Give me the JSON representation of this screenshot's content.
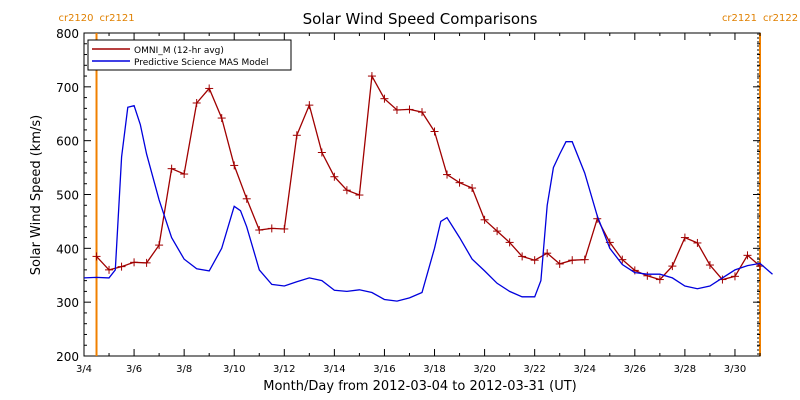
{
  "chart_data": {
    "type": "line",
    "title": "Solar Wind Speed Comparisons",
    "xlabel": "Month/Day from 2012-03-04 to 2012-03-31 (UT)",
    "ylabel": "Solar Wind Speed (km/s)",
    "xlim": [
      "2012-03-04",
      "2012-03-31"
    ],
    "ylim": [
      200,
      800
    ],
    "x_ticks": [
      "3/4",
      "3/6",
      "3/8",
      "3/10",
      "3/12",
      "3/14",
      "3/16",
      "3/18",
      "3/20",
      "3/22",
      "3/24",
      "3/26",
      "3/28",
      "3/30"
    ],
    "y_ticks": [
      200,
      300,
      400,
      500,
      600,
      700,
      800
    ],
    "legend_position": "top-left",
    "carrington_markers": [
      {
        "label_left": "cr2120",
        "label_right": "cr2121",
        "date": "2012-03-04 12:00"
      },
      {
        "label_left": "cr2121",
        "label_right": "cr2122",
        "date": "2012-03-31 00:00"
      }
    ],
    "series": [
      {
        "name": "OMNI_M (12-hr avg)",
        "color": "#a00000",
        "marker": "plus",
        "x": [
          "2012-03-04 12:00",
          "2012-03-05 00:00",
          "2012-03-05 12:00",
          "2012-03-06 00:00",
          "2012-03-06 12:00",
          "2012-03-07 00:00",
          "2012-03-07 12:00",
          "2012-03-08 00:00",
          "2012-03-08 12:00",
          "2012-03-09 00:00",
          "2012-03-09 12:00",
          "2012-03-10 00:00",
          "2012-03-10 12:00",
          "2012-03-11 00:00",
          "2012-03-11 12:00",
          "2012-03-12 00:00",
          "2012-03-12 12:00",
          "2012-03-13 00:00",
          "2012-03-13 12:00",
          "2012-03-14 00:00",
          "2012-03-14 12:00",
          "2012-03-15 00:00",
          "2012-03-15 12:00",
          "2012-03-16 00:00",
          "2012-03-16 12:00",
          "2012-03-17 00:00",
          "2012-03-17 12:00",
          "2012-03-18 00:00",
          "2012-03-18 12:00",
          "2012-03-19 00:00",
          "2012-03-19 12:00",
          "2012-03-20 00:00",
          "2012-03-20 12:00",
          "2012-03-21 00:00",
          "2012-03-21 12:00",
          "2012-03-22 00:00",
          "2012-03-22 12:00",
          "2012-03-23 00:00",
          "2012-03-23 12:00",
          "2012-03-24 00:00",
          "2012-03-24 12:00",
          "2012-03-25 00:00",
          "2012-03-25 12:00",
          "2012-03-26 00:00",
          "2012-03-26 12:00",
          "2012-03-27 00:00",
          "2012-03-27 12:00",
          "2012-03-28 00:00",
          "2012-03-28 12:00",
          "2012-03-29 00:00",
          "2012-03-29 12:00",
          "2012-03-30 00:00",
          "2012-03-30 12:00",
          "2012-03-31 00:00"
        ],
        "y": [
          385,
          360,
          366,
          374,
          373,
          406,
          548,
          538,
          670,
          697,
          642,
          554,
          492,
          434,
          437,
          436,
          610,
          666,
          578,
          533,
          508,
          499,
          720,
          678,
          657,
          658,
          653,
          617,
          537,
          522,
          512,
          453,
          432,
          411,
          385,
          378,
          391,
          371,
          378,
          379,
          455,
          411,
          379,
          359,
          349,
          342,
          367,
          420,
          410,
          369,
          342,
          348,
          387,
          367
        ]
      },
      {
        "name": "Predictive Science MAS Model",
        "color": "#0000dd",
        "marker": "none",
        "x": [
          "2012-03-04 00:00",
          "2012-03-04 12:00",
          "2012-03-05 00:00",
          "2012-03-05 06:00",
          "2012-03-05 12:00",
          "2012-03-05 18:00",
          "2012-03-06 00:00",
          "2012-03-06 06:00",
          "2012-03-06 12:00",
          "2012-03-07 00:00",
          "2012-03-07 12:00",
          "2012-03-08 00:00",
          "2012-03-08 12:00",
          "2012-03-09 00:00",
          "2012-03-09 12:00",
          "2012-03-10 00:00",
          "2012-03-10 06:00",
          "2012-03-10 12:00",
          "2012-03-10 18:00",
          "2012-03-11 00:00",
          "2012-03-11 12:00",
          "2012-03-12 00:00",
          "2012-03-12 12:00",
          "2012-03-13 00:00",
          "2012-03-13 12:00",
          "2012-03-14 00:00",
          "2012-03-14 12:00",
          "2012-03-15 00:00",
          "2012-03-15 12:00",
          "2012-03-16 00:00",
          "2012-03-16 12:00",
          "2012-03-17 00:00",
          "2012-03-17 12:00",
          "2012-03-18 00:00",
          "2012-03-18 06:00",
          "2012-03-18 12:00",
          "2012-03-19 00:00",
          "2012-03-19 12:00",
          "2012-03-20 00:00",
          "2012-03-20 12:00",
          "2012-03-21 00:00",
          "2012-03-21 12:00",
          "2012-03-22 00:00",
          "2012-03-22 06:00",
          "2012-03-22 12:00",
          "2012-03-22 18:00",
          "2012-03-23 00:00",
          "2012-03-23 06:00",
          "2012-03-23 12:00",
          "2012-03-24 00:00",
          "2012-03-24 12:00",
          "2012-03-25 00:00",
          "2012-03-25 12:00",
          "2012-03-26 00:00",
          "2012-03-26 12:00",
          "2012-03-27 00:00",
          "2012-03-27 12:00",
          "2012-03-28 00:00",
          "2012-03-28 12:00",
          "2012-03-29 00:00",
          "2012-03-29 12:00",
          "2012-03-30 00:00",
          "2012-03-30 12:00",
          "2012-03-31 00:00",
          "2012-03-31 12:00"
        ],
        "y": [
          345,
          346,
          345,
          360,
          570,
          662,
          665,
          630,
          575,
          490,
          420,
          380,
          362,
          358,
          400,
          478,
          470,
          440,
          400,
          360,
          333,
          330,
          338,
          345,
          340,
          322,
          320,
          323,
          318,
          305,
          302,
          308,
          318,
          400,
          450,
          457,
          420,
          380,
          358,
          335,
          320,
          310,
          310,
          340,
          480,
          550,
          575,
          598,
          598,
          540,
          460,
          400,
          370,
          355,
          352,
          352,
          345,
          330,
          325,
          330,
          345,
          360,
          368,
          372,
          352
        ]
      }
    ]
  }
}
